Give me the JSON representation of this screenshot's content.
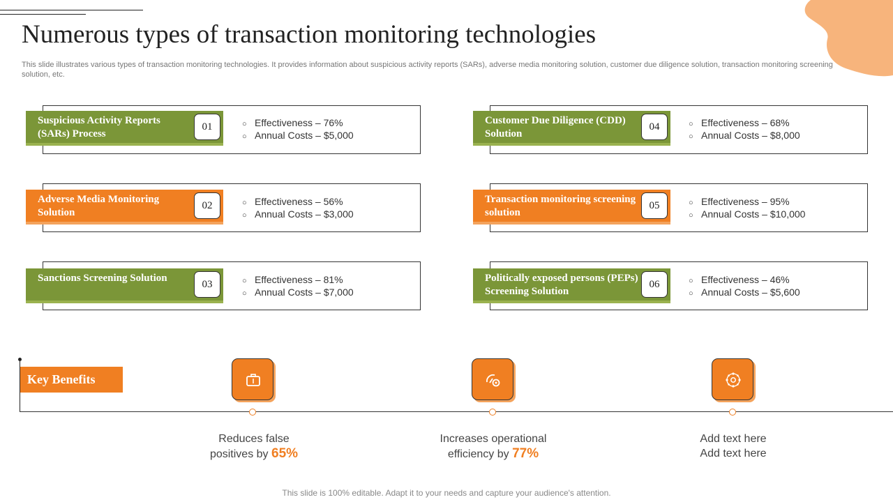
{
  "title": "Numerous types of transaction monitoring technologies",
  "subtitle": "This slide illustrates various types of transaction monitoring technologies. It provides information about suspicious activity reports (SARs), adverse media monitoring solution, customer due diligence solution, transaction monitoring screening solution, etc.",
  "colors": {
    "green": "#7b9638",
    "orange": "#f07f22",
    "peach": "#f7b47c"
  },
  "technologies": [
    {
      "number": "01",
      "name": "Suspicious Activity Reports (SARs) Process",
      "color": "green",
      "effectiveness": "Effectiveness – 76%",
      "cost": "Annual Costs – $5,000"
    },
    {
      "number": "02",
      "name": "Adverse Media Monitoring Solution",
      "color": "orange",
      "effectiveness": "Effectiveness – 56%",
      "cost": "Annual Costs – $3,000"
    },
    {
      "number": "03",
      "name": "Sanctions Screening Solution",
      "color": "green",
      "effectiveness": "Effectiveness – 81%",
      "cost": "Annual Costs – $7,000"
    },
    {
      "number": "04",
      "name": "Customer Due Diligence (CDD) Solution",
      "color": "green",
      "effectiveness": "Effectiveness – 68%",
      "cost": "Annual Costs – $8,000"
    },
    {
      "number": "05",
      "name": "Transaction monitoring screening solution",
      "color": "orange",
      "effectiveness": "Effectiveness – 95%",
      "cost": "Annual Costs – $10,000"
    },
    {
      "number": "06",
      "name": "Politically exposed persons (PEPs) Screening Solution",
      "color": "green",
      "effectiveness": "Effectiveness – 46%",
      "cost": "Annual Costs – $5,600"
    }
  ],
  "bullet_glyph": "○",
  "key_benefits": {
    "label": "Key Benefits",
    "items": [
      {
        "icon": "briefcase-icon",
        "line1": "Reduces false",
        "line2": "positives by",
        "highlight": "65%"
      },
      {
        "icon": "gauge-gear-icon",
        "line1": "Increases operational",
        "line2": "efficiency by",
        "highlight": "77%"
      },
      {
        "icon": "network-hub-icon",
        "line1": "Add text here",
        "line2": "Add text here",
        "highlight": ""
      }
    ]
  },
  "footer": "This slide is 100% editable. Adapt it to your needs and capture your audience's attention."
}
